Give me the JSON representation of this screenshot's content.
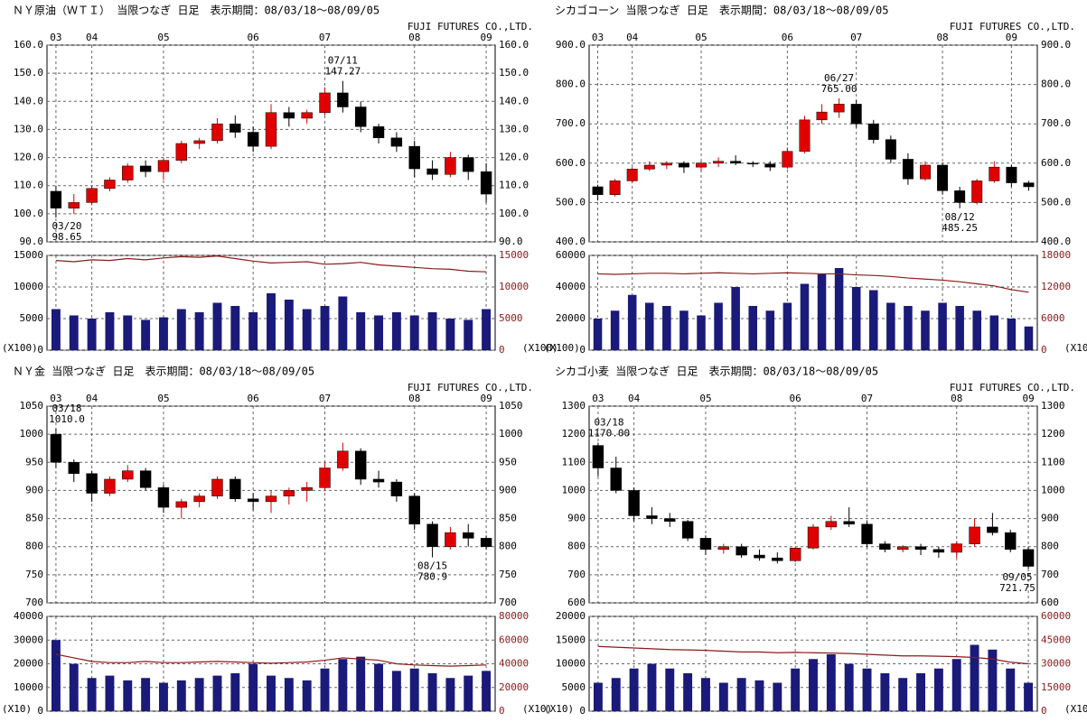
{
  "chart_data": [
    {
      "type": "candlestick",
      "title": "ＮＹ原油（ＷＴＩ） 当限つなぎ 日足　表示期間：08/03/18～08/09/05",
      "company": "FUJI FUTURES CO.,LTD.",
      "categories": [
        "03",
        null,
        "04",
        null,
        null,
        null,
        "05",
        null,
        null,
        null,
        null,
        "06",
        null,
        null,
        null,
        "07",
        null,
        null,
        null,
        null,
        "08",
        null,
        null,
        null,
        "09"
      ],
      "open": [
        108,
        102,
        104,
        109,
        112,
        117,
        115,
        119,
        125,
        126,
        132,
        129,
        124,
        136,
        134,
        136,
        143,
        138,
        131,
        127,
        124,
        116,
        114,
        120,
        115
      ],
      "high": [
        110,
        107,
        110,
        113,
        118,
        119,
        120,
        126,
        127,
        134,
        135,
        131,
        139,
        138,
        137,
        145,
        147.27,
        140,
        132,
        129,
        126,
        119,
        122,
        121,
        118
      ],
      "low": [
        98.65,
        100,
        103,
        108,
        111,
        113,
        112,
        118,
        123,
        125,
        127,
        122,
        123,
        131,
        132,
        135,
        136,
        129,
        125,
        122,
        113,
        112,
        113,
        112,
        104
      ],
      "close": [
        102,
        104,
        109,
        112,
        117,
        115,
        119,
        125,
        126,
        132,
        129,
        124,
        136,
        134,
        136,
        143,
        138,
        131,
        127,
        124,
        116,
        114,
        120,
        115,
        107
      ],
      "ylim": [
        90,
        160
      ],
      "yticks": [
        {
          "value": 90,
          "label": "90.0"
        },
        {
          "value": 100,
          "label": "100.0"
        },
        {
          "value": 110,
          "label": "110.0"
        },
        {
          "value": 120,
          "label": "120.0"
        },
        {
          "value": 130,
          "label": "130.0"
        },
        {
          "value": 140,
          "label": "140.0"
        },
        {
          "value": 150,
          "label": "150.0"
        },
        {
          "value": 160,
          "label": "160.0"
        }
      ],
      "high_note": {
        "date": "07/11",
        "value": {
          "value": 147.27,
          "label": "147.27"
        }
      },
      "low_note": {
        "date": "03/20",
        "value": {
          "value": 98.65,
          "label": "98.65"
        }
      },
      "volume": [
        6500,
        5500,
        5000,
        6000,
        5500,
        4800,
        5200,
        6500,
        6000,
        7500,
        7000,
        6000,
        9000,
        8000,
        6500,
        7000,
        8500,
        6000,
        5500,
        6000,
        5500,
        6000,
        5000,
        4800,
        6500
      ],
      "volume_color": "#1a1a7a",
      "open_interest": [
        14200,
        14000,
        14300,
        14200,
        14500,
        14300,
        14600,
        14800,
        14700,
        14900,
        14500,
        14100,
        13800,
        13900,
        14000,
        13600,
        13700,
        13900,
        13500,
        13300,
        13100,
        12900,
        12800,
        12500,
        12400
      ],
      "open_interest_color": "#8b1a1a",
      "vlim": [
        0,
        15000
      ],
      "vticks": [
        0,
        5000,
        10000,
        15000
      ],
      "y2lim": [
        0,
        15000
      ],
      "y2ticks": [
        0,
        5000,
        10000,
        15000
      ],
      "volume_unit": "(X100)",
      "up_color": "#e00000",
      "down_color": "#000000",
      "grid": true
    },
    {
      "type": "candlestick",
      "title": "シカゴコーン 当限つなぎ 日足　表示期間：08/03/18～08/09/05",
      "company": "FUJI FUTURES CO.,LTD.",
      "categories": [
        "03",
        null,
        "04",
        null,
        null,
        null,
        "05",
        null,
        null,
        null,
        null,
        "06",
        null,
        null,
        null,
        "07",
        null,
        null,
        null,
        null,
        "08",
        null,
        null,
        null,
        "09",
        null
      ],
      "open": [
        540,
        520,
        555,
        585,
        595,
        600,
        590,
        600,
        605,
        600,
        598,
        590,
        630,
        710,
        730,
        750,
        700,
        660,
        610,
        560,
        595,
        530,
        500,
        555,
        590,
        550
      ],
      "high": [
        545,
        560,
        590,
        605,
        605,
        605,
        605,
        615,
        620,
        605,
        605,
        640,
        720,
        750,
        765,
        760,
        710,
        670,
        625,
        605,
        600,
        540,
        560,
        605,
        595,
        555
      ],
      "low": [
        505,
        515,
        550,
        580,
        585,
        575,
        580,
        590,
        595,
        590,
        580,
        585,
        625,
        700,
        715,
        690,
        650,
        600,
        545,
        555,
        520,
        485.25,
        495,
        550,
        540,
        530
      ],
      "close": [
        520,
        555,
        585,
        595,
        600,
        590,
        600,
        605,
        600,
        598,
        590,
        630,
        710,
        730,
        750,
        700,
        660,
        610,
        560,
        595,
        530,
        500,
        555,
        590,
        550,
        540
      ],
      "ylim": [
        400,
        900
      ],
      "yticks": [
        {
          "value": 400,
          "label": "400.0"
        },
        {
          "value": 500,
          "label": "500.0"
        },
        {
          "value": 600,
          "label": "600.0"
        },
        {
          "value": 700,
          "label": "700.0"
        },
        {
          "value": 800,
          "label": "800.0"
        },
        {
          "value": 900,
          "label": "900.0"
        }
      ],
      "high_note": {
        "date": "06/27",
        "value": {
          "value": 765,
          "label": "765.00"
        }
      },
      "low_note": {
        "date": "08/12",
        "value": {
          "value": 485.25,
          "label": "485.25"
        }
      },
      "volume": [
        20000,
        25000,
        35000,
        30000,
        28000,
        25000,
        22000,
        30000,
        40000,
        28000,
        25000,
        30000,
        42000,
        48000,
        52000,
        40000,
        38000,
        30000,
        28000,
        25000,
        30000,
        28000,
        25000,
        22000,
        20000,
        15000
      ],
      "volume_color": "#1a1a7a",
      "open_interest": [
        14500,
        14400,
        14500,
        14600,
        14600,
        14500,
        14600,
        14700,
        14600,
        14500,
        14600,
        14700,
        14600,
        14500,
        14500,
        14300,
        14200,
        14000,
        13700,
        13500,
        13300,
        13000,
        12600,
        12200,
        11500,
        11000
      ],
      "open_interest_color": "#8b1a1a",
      "vlim": [
        0,
        60000
      ],
      "vticks": [
        0,
        20000,
        40000,
        60000
      ],
      "y2lim": [
        0,
        18000
      ],
      "y2ticks": [
        0,
        6000,
        12000,
        18000
      ],
      "volume_unit": "(X100)",
      "up_color": "#e00000",
      "down_color": "#000000",
      "grid": true
    },
    {
      "type": "candlestick",
      "title": "ＮＹ金 当限つなぎ 日足　表示期間：08/03/18～08/09/05",
      "company": "FUJI FUTURES CO.,LTD.",
      "categories": [
        "03",
        null,
        "04",
        null,
        null,
        null,
        "05",
        null,
        null,
        null,
        null,
        "06",
        null,
        null,
        null,
        "07",
        null,
        null,
        null,
        null,
        "08",
        null,
        null,
        null,
        "09"
      ],
      "open": [
        1000,
        950,
        930,
        895,
        920,
        935,
        905,
        870,
        880,
        890,
        920,
        885,
        880,
        890,
        900,
        905,
        940,
        970,
        920,
        915,
        890,
        840,
        800,
        825,
        815
      ],
      "high": [
        1010,
        955,
        935,
        925,
        945,
        940,
        910,
        885,
        895,
        925,
        925,
        895,
        900,
        905,
        915,
        950,
        985,
        975,
        935,
        920,
        895,
        845,
        835,
        840,
        820
      ],
      "low": [
        940,
        915,
        880,
        890,
        915,
        900,
        860,
        850,
        870,
        885,
        880,
        865,
        860,
        875,
        880,
        900,
        935,
        910,
        905,
        880,
        830,
        780.9,
        795,
        800,
        795
      ],
      "close": [
        950,
        930,
        895,
        920,
        935,
        905,
        870,
        880,
        890,
        920,
        885,
        880,
        890,
        900,
        905,
        940,
        970,
        920,
        915,
        890,
        840,
        800,
        825,
        815,
        800
      ],
      "ylim": [
        700,
        1050
      ],
      "yticks": [
        700,
        750,
        800,
        850,
        900,
        950,
        1000,
        1050
      ],
      "high_note": {
        "date": "03/18",
        "value": {
          "value": 1010,
          "label": "1010.0"
        }
      },
      "low_note": {
        "date": "08/15",
        "value": {
          "value": 780.9,
          "label": "780.9"
        }
      },
      "volume": [
        30000,
        20000,
        14000,
        15000,
        13000,
        14000,
        12000,
        13000,
        14000,
        15000,
        16000,
        20000,
        15000,
        14000,
        13000,
        18000,
        22000,
        23000,
        20000,
        17000,
        18000,
        16000,
        14000,
        15000,
        17000
      ],
      "volume_color": "#1a1a7a",
      "open_interest": [
        48000,
        45000,
        42000,
        41000,
        41000,
        42000,
        41000,
        41000,
        41500,
        42000,
        41500,
        41000,
        40500,
        41000,
        41500,
        43000,
        45000,
        44000,
        43000,
        40000,
        39000,
        38500,
        38000,
        38500,
        39000
      ],
      "open_interest_color": "#8b1a1a",
      "vlim": [
        0,
        40000
      ],
      "vticks": [
        0,
        10000,
        20000,
        30000,
        40000
      ],
      "y2lim": [
        0,
        80000
      ],
      "y2ticks": [
        0,
        20000,
        40000,
        60000,
        80000
      ],
      "volume_unit": "(X10)",
      "up_color": "#e00000",
      "down_color": "#000000",
      "grid": true
    },
    {
      "type": "candlestick",
      "title": "シカゴ小麦 当限つなぎ 日足　表示期間：08/03/18～08/09/05",
      "company": "FUJI FUTURES CO.,LTD.",
      "categories": [
        "03",
        null,
        "04",
        null,
        null,
        null,
        "05",
        null,
        null,
        null,
        null,
        "06",
        null,
        null,
        null,
        "07",
        null,
        null,
        null,
        null,
        "08",
        null,
        null,
        null,
        "09"
      ],
      "open": [
        1160,
        1080,
        1000,
        910,
        900,
        890,
        830,
        790,
        800,
        770,
        760,
        750,
        795,
        870,
        890,
        880,
        810,
        790,
        800,
        790,
        780,
        810,
        870,
        850,
        790
      ],
      "high": [
        1170,
        1120,
        1010,
        940,
        920,
        895,
        840,
        810,
        810,
        790,
        780,
        800,
        880,
        910,
        940,
        890,
        820,
        805,
        810,
        800,
        820,
        900,
        920,
        860,
        800
      ],
      "low": [
        1050,
        990,
        890,
        880,
        870,
        820,
        770,
        775,
        760,
        750,
        740,
        745,
        790,
        860,
        870,
        800,
        780,
        780,
        770,
        760,
        760,
        800,
        840,
        780,
        721.75
      ],
      "close": [
        1080,
        1000,
        910,
        900,
        890,
        830,
        790,
        800,
        770,
        760,
        750,
        795,
        870,
        890,
        880,
        810,
        790,
        800,
        790,
        780,
        810,
        870,
        850,
        790,
        730
      ],
      "ylim": [
        600,
        1300
      ],
      "yticks": [
        600,
        700,
        800,
        900,
        1000,
        1100,
        1200,
        1300
      ],
      "high_note": {
        "date": "03/18",
        "value": {
          "value": 1170,
          "label": "1170.00"
        }
      },
      "low_note": {
        "date": "09/05",
        "value": {
          "value": 721.75,
          "label": "721.75"
        }
      },
      "volume": [
        6000,
        7000,
        9000,
        10000,
        9000,
        8000,
        7000,
        6000,
        7000,
        6500,
        6000,
        9000,
        11000,
        12000,
        10000,
        9000,
        8000,
        7000,
        8000,
        9000,
        11000,
        14000,
        13000,
        9000,
        6000
      ],
      "volume_color": "#1a1a7a",
      "open_interest": [
        41000,
        40500,
        40000,
        39500,
        39000,
        38800,
        38500,
        38000,
        37500,
        37500,
        37000,
        37200,
        37000,
        36800,
        36500,
        36000,
        35500,
        35000,
        35000,
        34800,
        34500,
        34000,
        33000,
        31000,
        30000
      ],
      "open_interest_color": "#8b1a1a",
      "vlim": [
        0,
        20000
      ],
      "vticks": [
        0,
        5000,
        10000,
        15000,
        20000
      ],
      "y2lim": [
        0,
        60000
      ],
      "y2ticks": [
        0,
        15000,
        30000,
        45000,
        60000
      ],
      "volume_unit": "(X10)",
      "up_color": "#e00000",
      "down_color": "#000000",
      "grid": true
    }
  ]
}
